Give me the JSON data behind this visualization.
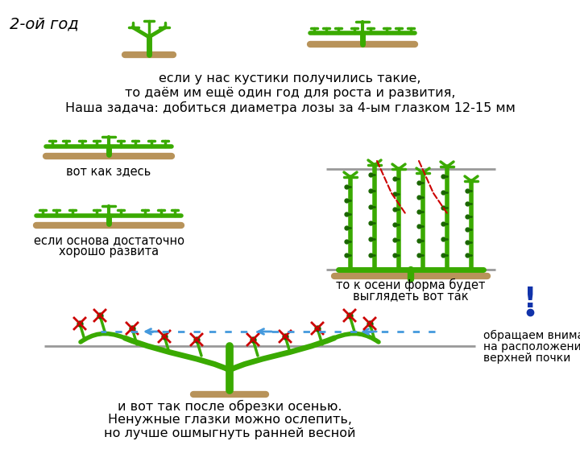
{
  "bg_color": "#ffffff",
  "green_vine": "#3aaa00",
  "dark_green": "#1a6600",
  "brown": "#b8935a",
  "red": "#cc0000",
  "blue_arrow": "#4499dd",
  "gray_wire": "#999999",
  "texts": {
    "year": "2-ой год",
    "line1": "если у нас кустики получились такие,",
    "line2": "то даём им ещё один год для роста и развития,",
    "line3": "Наша задача: добиться диаметра лозы за 4-ым глазком 12-15 мм",
    "left1": "вот как здесь",
    "left2a": "если основа достаточно",
    "left2b": "хорошо развита",
    "right2a": "то к осени форма будет",
    "right2b": "выглядеть вот так",
    "bottom1": "и вот так после обрезки осенью.",
    "bottom2": "Ненужные глазки можно ослепить,",
    "bottom3": "но лучше ошмыгнуть ранней весной",
    "note1": "обращаем внимание",
    "note2": "на расположение",
    "note3": "верхней почки"
  }
}
